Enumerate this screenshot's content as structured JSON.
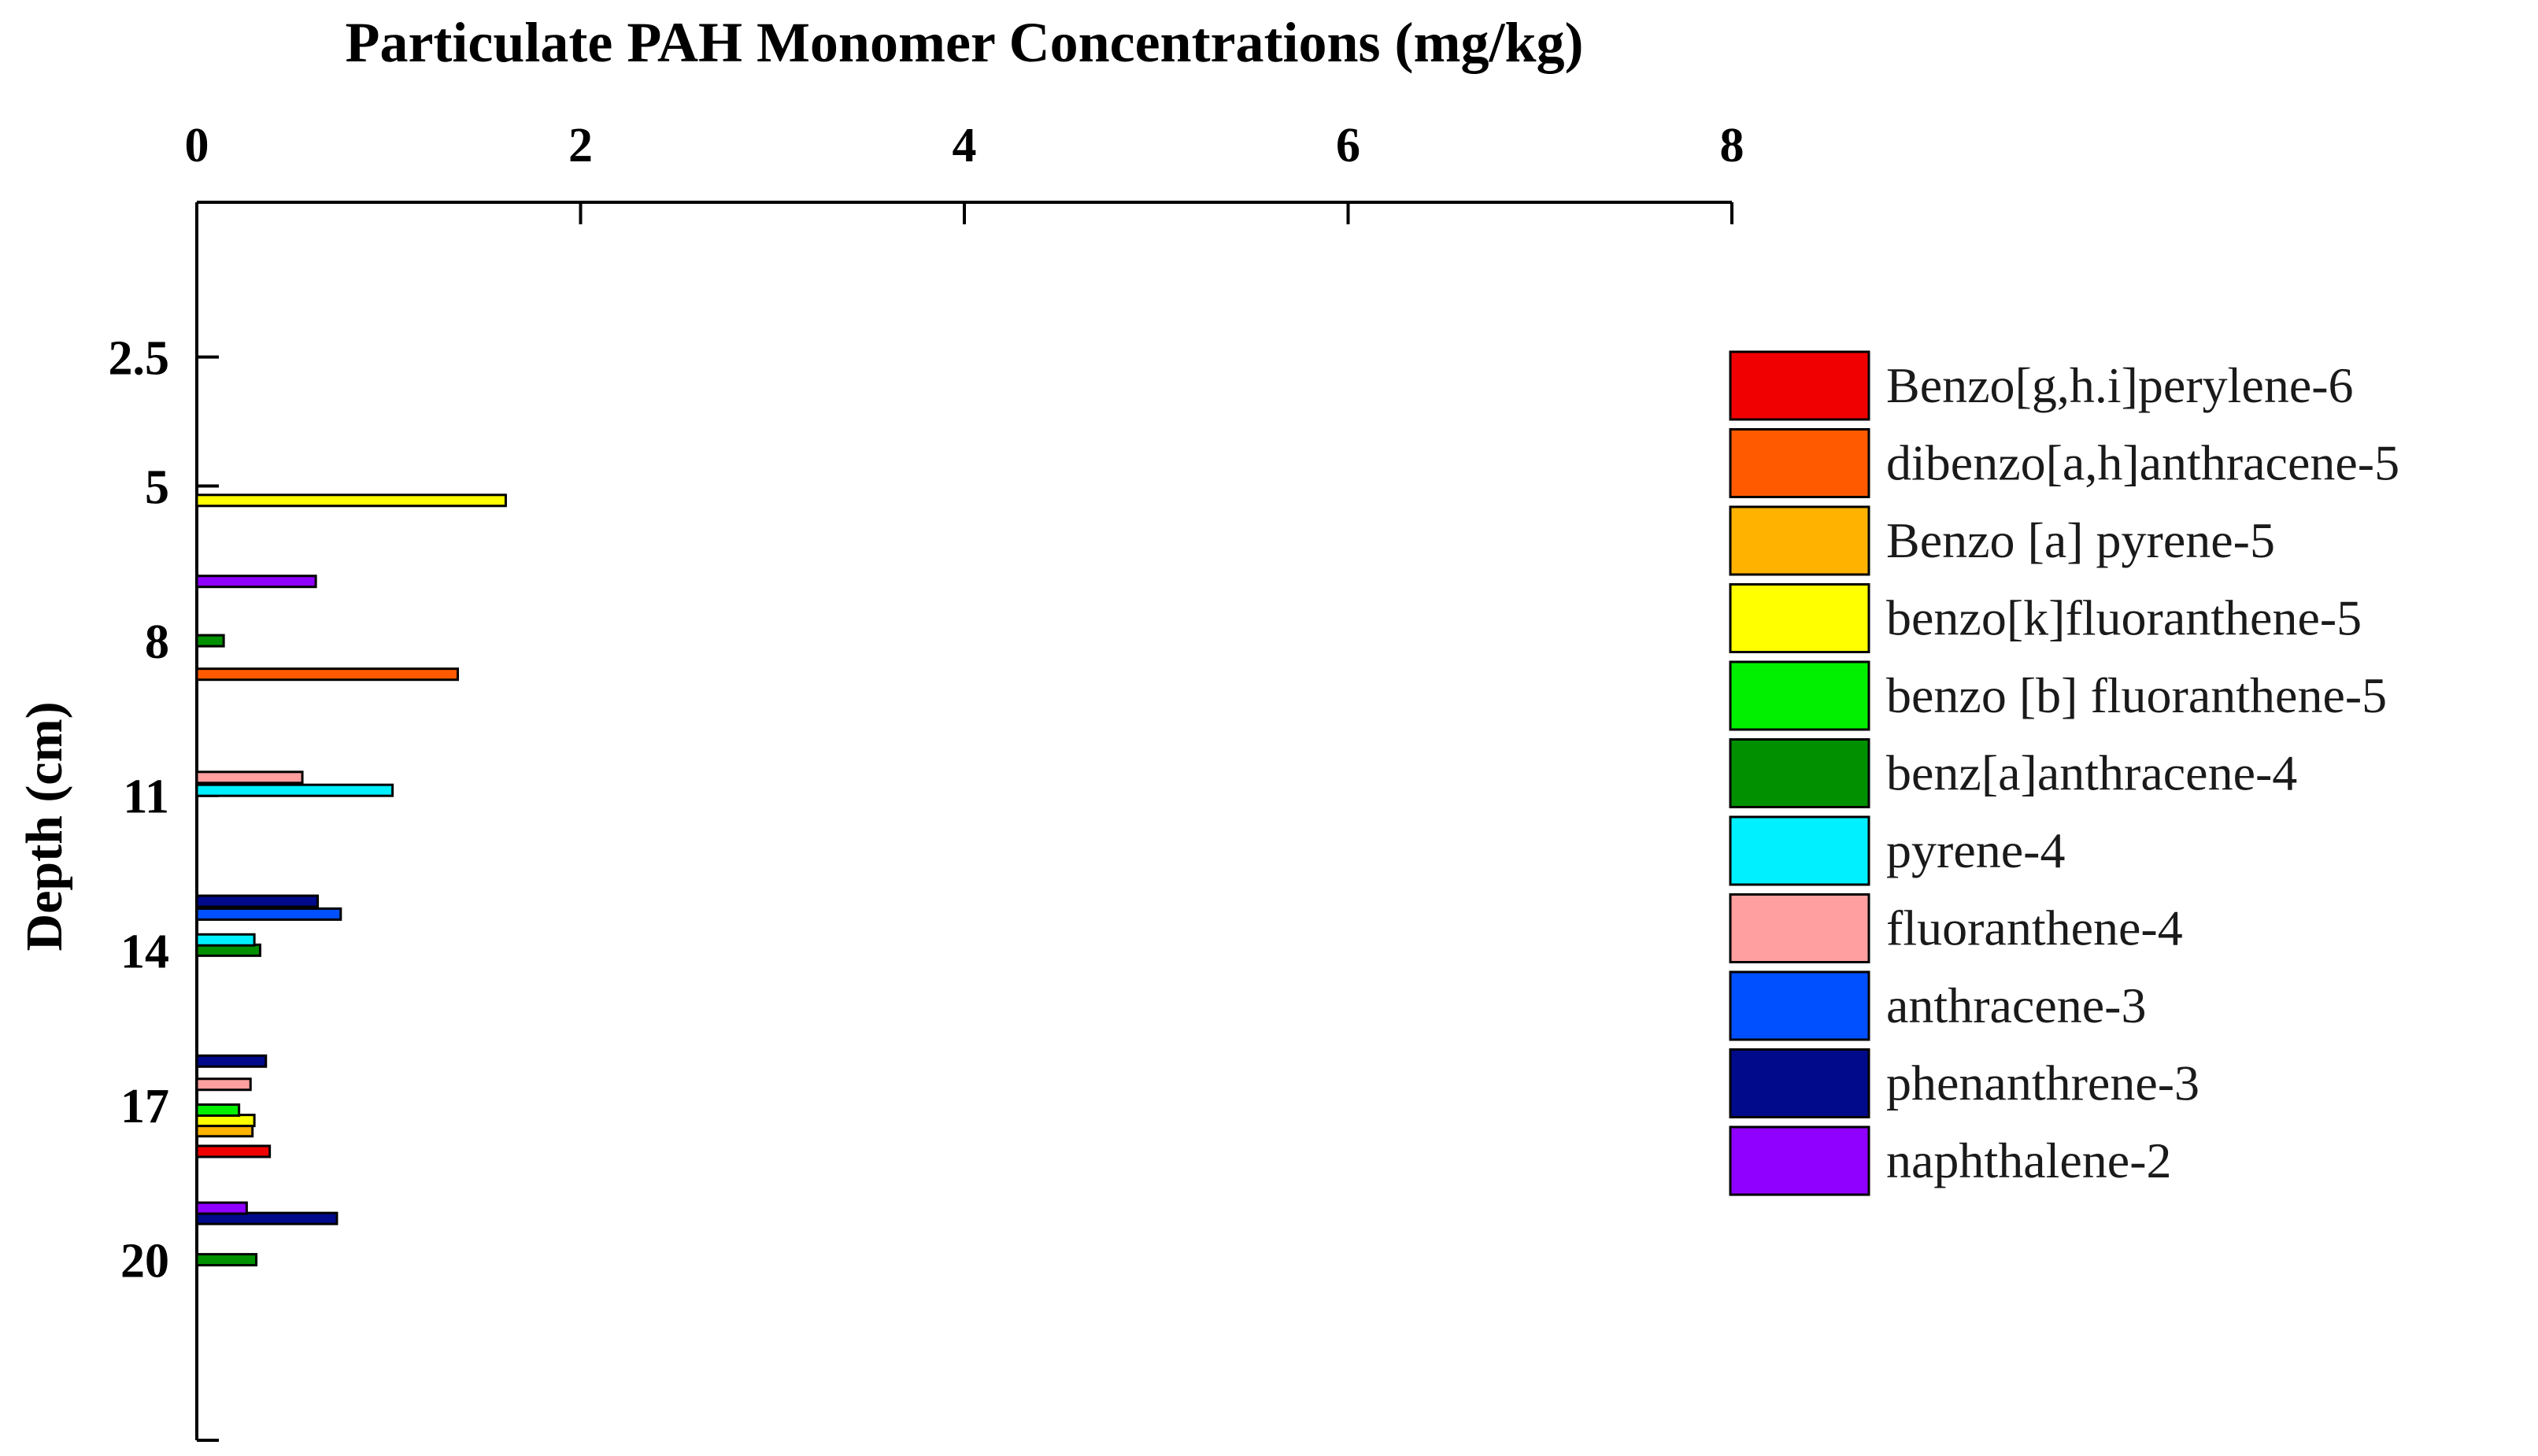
{
  "chart_data": {
    "type": "bar",
    "orientation": "horizontal",
    "title": "",
    "xlabel": "Particulate PAH Monomer Concentrations (mg/kg)",
    "ylabel": "Depth (cm)",
    "xlim": [
      0,
      8
    ],
    "ylim": [
      -0.5,
      23.5
    ],
    "x_ticks": [
      "0",
      "2",
      "4",
      "6",
      "8"
    ],
    "y_ticks": [
      "2.5",
      "5",
      "8",
      "11",
      "14",
      "17",
      "20"
    ],
    "x_axis_position": "top",
    "y_axis_inverted": true,
    "grid": false,
    "legend_position": "right",
    "series": [
      {
        "name": "Benzo[g,h.i]perylene-6",
        "color": "#f00000",
        "points": [
          {
            "depth": 17.9,
            "value": 0.38
          }
        ]
      },
      {
        "name": "dibenzo[a,h]anthracene-5",
        "color": "#ff5a00",
        "points": [
          {
            "depth": 8.65,
            "value": 1.36
          }
        ]
      },
      {
        "name": "Benzo [a] pyrene-5",
        "color": "#ffb300",
        "points": [
          {
            "depth": 17.5,
            "value": 0.29
          }
        ]
      },
      {
        "name": "benzo[k]fluoranthene-5",
        "color": "#ffff00",
        "points": [
          {
            "depth": 5.28,
            "value": 1.61
          },
          {
            "depth": 17.3,
            "value": 0.3
          }
        ]
      },
      {
        "name": "benzo [b] fluoranthene-5",
        "color": "#00f000",
        "points": [
          {
            "depth": 17.1,
            "value": 0.22
          }
        ]
      },
      {
        "name": "benz[a]anthracene-4",
        "color": "#009000",
        "points": [
          {
            "depth": 8.0,
            "value": 0.14
          },
          {
            "depth": 14.0,
            "value": 0.33
          },
          {
            "depth": 20.0,
            "value": 0.31
          }
        ]
      },
      {
        "name": "pyrene-4",
        "color": "#00f0ff",
        "points": [
          {
            "depth": 10.9,
            "value": 1.02
          },
          {
            "depth": 13.8,
            "value": 0.3
          }
        ]
      },
      {
        "name": "fluoranthene-4",
        "color": "#ff9f9f",
        "points": [
          {
            "depth": 10.65,
            "value": 0.55
          },
          {
            "depth": 16.6,
            "value": 0.28
          }
        ]
      },
      {
        "name": "anthracene-3",
        "color": "#0050ff",
        "points": [
          {
            "depth": 13.3,
            "value": 0.75
          }
        ]
      },
      {
        "name": "phenanthrene-3",
        "color": "#000a8a",
        "points": [
          {
            "depth": 13.05,
            "value": 0.63
          },
          {
            "depth": 16.15,
            "value": 0.36
          },
          {
            "depth": 19.2,
            "value": 0.73
          }
        ]
      },
      {
        "name": "naphthalene-2",
        "color": "#9000ff",
        "points": [
          {
            "depth": 6.85,
            "value": 0.62
          },
          {
            "depth": 19.0,
            "value": 0.26
          }
        ]
      }
    ]
  }
}
